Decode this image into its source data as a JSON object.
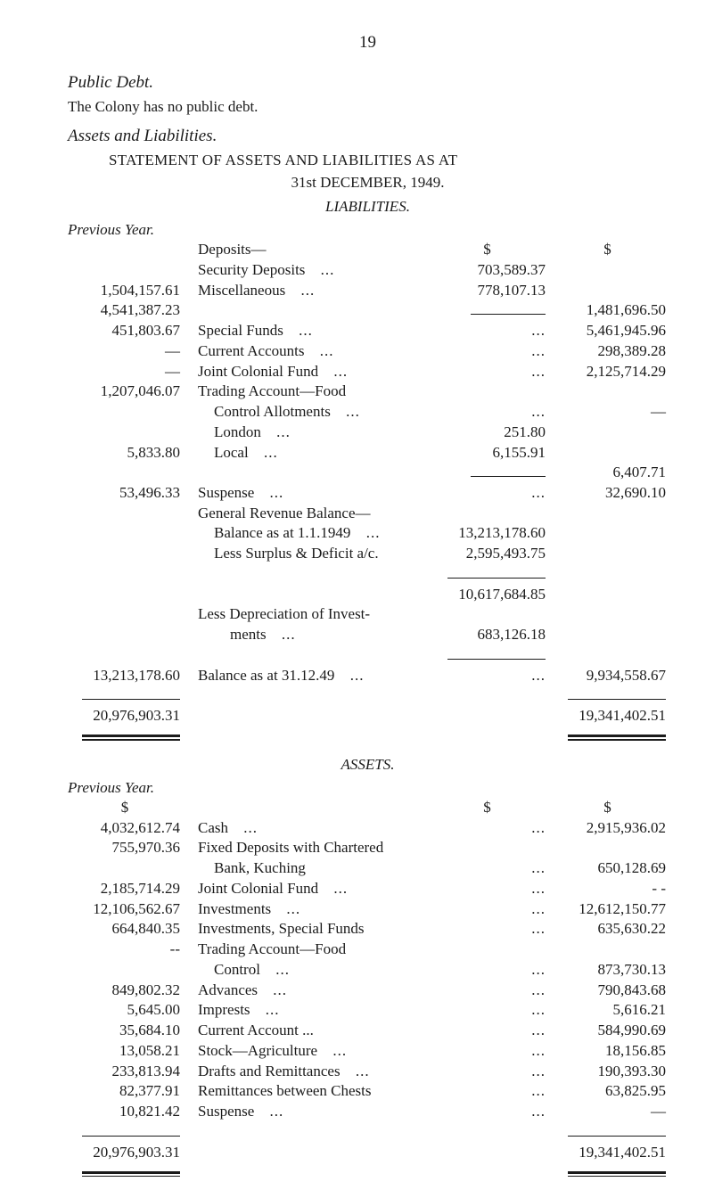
{
  "page_number": "19",
  "section1_title": "Public Debt.",
  "section1_text": "The Colony has no public debt.",
  "section2_title": "Assets and Liabilities.",
  "stmt_title": "STATEMENT OF ASSETS AND LIABILITIES AS AT",
  "stmt_date_small_caps": "31st DECEMBER, 1949.",
  "liab_heading": "LIABILITIES.",
  "assets_heading": "ASSETS.",
  "previous_year_label": "Previous Year.",
  "dollar_sign": "$",
  "liabilities": {
    "rows": [
      {
        "prev": "",
        "desc": "Deposits—",
        "mid": "$",
        "right": "$"
      },
      {
        "prev": "",
        "desc": "Security Deposits",
        "dots": true,
        "mid": "703,589.37",
        "right": ""
      },
      {
        "prev": "1,504,157.61",
        "desc": "Miscellaneous",
        "dots": true,
        "mid": "778,107.13",
        "right": ""
      },
      {
        "prev": "4,541,387.23",
        "desc": "",
        "mid": "rule-84",
        "right": "1,481,696.50"
      },
      {
        "prev": "451,803.67",
        "desc": "Special Funds",
        "dots": true,
        "mid": "...",
        "right": "5,461,945.96"
      },
      {
        "prev": "—",
        "desc": "Current Accounts",
        "dots": true,
        "mid": "...",
        "right": "298,389.28"
      },
      {
        "prev": "—",
        "desc": "Joint Colonial Fund",
        "dots": true,
        "mid": "...",
        "right": "2,125,714.29"
      },
      {
        "prev": "1,207,046.07",
        "desc": "Trading Account—Food",
        "mid": "",
        "right": ""
      },
      {
        "prev": "",
        "desc": "Control Allotments",
        "indent": 1,
        "dots": true,
        "mid": "...",
        "right": "—"
      },
      {
        "prev": "",
        "desc": "London",
        "indent": 1,
        "dots": true,
        "mid": "251.80",
        "right": ""
      },
      {
        "prev": "5,833.80",
        "desc": "Local",
        "indent": 1,
        "dots": true,
        "mid": "6,155.91",
        "right": ""
      },
      {
        "prev": "",
        "desc": "",
        "mid": "rule-84",
        "right": "6,407.71"
      },
      {
        "prev": "53,496.33",
        "desc": "Suspense",
        "dots": true,
        "mid": "...",
        "right": "32,690.10"
      },
      {
        "prev": "",
        "desc": "General Revenue Balance—",
        "mid": "",
        "right": ""
      },
      {
        "prev": "",
        "desc": "Balance as at 1.1.1949",
        "indent": 1,
        "dots": true,
        "mid": "13,213,178.60",
        "right": ""
      },
      {
        "prev": "",
        "desc": "Less Surplus & Deficit a/c.",
        "indent": 1,
        "mid": "2,595,493.75",
        "right": ""
      },
      {
        "prev": "",
        "desc": "",
        "mid": "rule-110",
        "right": ""
      },
      {
        "prev": "",
        "desc": "",
        "mid": "10,617,684.85",
        "right": ""
      },
      {
        "prev": "",
        "desc": "Less Depreciation of Invest-",
        "mid": "",
        "right": ""
      },
      {
        "prev": "",
        "desc": "ments",
        "indent": 2,
        "dots": true,
        "mid": "683,126.18",
        "right": ""
      },
      {
        "prev": "",
        "desc": "",
        "mid": "rule-110",
        "right": ""
      },
      {
        "prev": "13,213,178.60",
        "desc": "Balance as at 31.12.49",
        "dots": true,
        "mid": "...",
        "right": "9,934,558.67"
      },
      {
        "prev": "rule-110",
        "desc": "",
        "mid": "",
        "right": "rule-110"
      },
      {
        "prev": "20,976,903.31",
        "desc": "",
        "mid": "",
        "right": "19,341,402.51"
      },
      {
        "prev": "drule-110",
        "desc": "",
        "mid": "",
        "right": "drule-110"
      }
    ]
  },
  "assets": {
    "rows": [
      {
        "prev": "$",
        "desc": "",
        "mid": "$",
        "right": "$"
      },
      {
        "prev": "4,032,612.74",
        "desc": "Cash",
        "dots": true,
        "mid": "...",
        "right": "2,915,936.02"
      },
      {
        "prev": "755,970.36",
        "desc": "Fixed Deposits with Chartered",
        "mid": "",
        "right": ""
      },
      {
        "prev": "",
        "desc": "Bank, Kuching",
        "indent": 1,
        "mid": "...",
        "right": "650,128.69"
      },
      {
        "prev": "2,185,714.29",
        "desc": "Joint Colonial Fund",
        "dots": true,
        "mid": "...",
        "right": "- -"
      },
      {
        "prev": "12,106,562.67",
        "desc": "Investments",
        "dots": true,
        "mid": "...",
        "right": "12,612,150.77"
      },
      {
        "prev": "664,840.35",
        "desc": "Investments, Special Funds",
        "mid": "...",
        "right": "635,630.22"
      },
      {
        "prev": "--",
        "desc": "Trading Account—Food",
        "mid": "",
        "right": ""
      },
      {
        "prev": "",
        "desc": "Control",
        "indent": 1,
        "dots": true,
        "mid": "...",
        "right": "873,730.13"
      },
      {
        "prev": "849,802.32",
        "desc": "Advances",
        "dots": true,
        "mid": "...",
        "right": "790,843.68"
      },
      {
        "prev": "5,645.00",
        "desc": "Imprests",
        "dots": true,
        "mid": "...",
        "right": "5,616.21"
      },
      {
        "prev": "35,684.10",
        "desc": "Current Account ...",
        "mid": "...",
        "right": "584,990.69"
      },
      {
        "prev": "13,058.21",
        "desc": "Stock—Agriculture",
        "dots": true,
        "mid": "...",
        "right": "18,156.85"
      },
      {
        "prev": "233,813.94",
        "desc": "Drafts and Remittances",
        "dots": true,
        "mid": "...",
        "right": "190,393.30"
      },
      {
        "prev": "82,377.91",
        "desc": "Remittances between Chests",
        "mid": "...",
        "right": "63,825.95"
      },
      {
        "prev": "10,821.42",
        "desc": "Suspense",
        "dots": true,
        "mid": "...",
        "right": "—"
      },
      {
        "prev": "rule-110",
        "desc": "",
        "mid": "",
        "right": "rule-110"
      },
      {
        "prev": "20,976,903.31",
        "desc": "",
        "mid": "",
        "right": "19,341,402.51"
      },
      {
        "prev": "drule-110",
        "desc": "",
        "mid": "",
        "right": "drule-110"
      }
    ]
  }
}
